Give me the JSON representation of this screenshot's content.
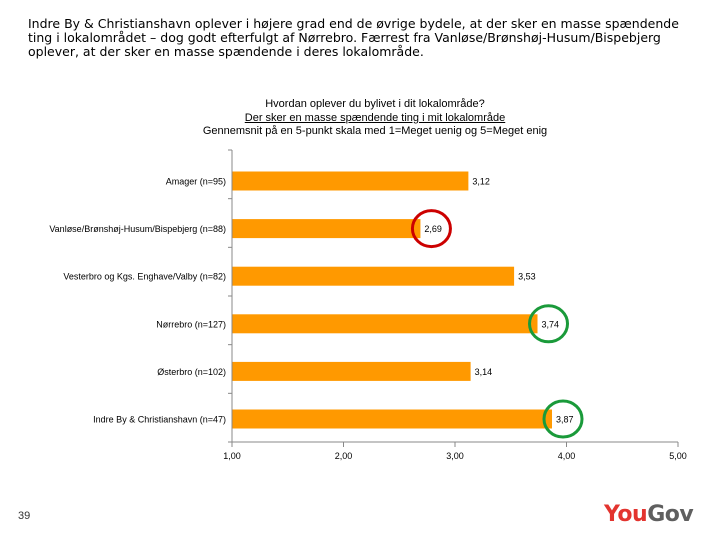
{
  "intro_text": "Indre By & Christianshavn oplever i højere grad end de øvrige bydele, at der sker en masse spændende ting i lokalområdet – dog godt efterfulgt af Nørrebro. Færrest fra Vanløse/Brønshøj-Husum/Bispebjerg oplever, at der sker en masse spændende i deres lokalområde.",
  "chart_title": {
    "line1": "Hvordan oplever du bylivet i dit lokalområde?",
    "line2": "Der sker en masse spændende ting i mit lokalområde",
    "line3": "Gennemsnit på en 5-punkt skala med 1=Meget uenig og 5=Meget enig"
  },
  "chart_data": {
    "type": "bar",
    "orientation": "horizontal",
    "categories": [
      "Amager (n=95)",
      "Vanløse/Brønshøj-Husum/Bispebjerg (n=88)",
      "Vesterbro og Kgs. Enghave/Valby (n=82)",
      "Nørrebro (n=127)",
      "Østerbro (n=102)",
      "Indre By & Christianshavn (n=47)"
    ],
    "values": [
      3.12,
      2.69,
      3.53,
      3.74,
      3.14,
      3.87
    ],
    "value_labels": [
      "3,12",
      "2,69",
      "3,53",
      "3,74",
      "3,14",
      "3,87"
    ],
    "xlim": [
      1,
      5
    ],
    "xticks": [
      "1,00",
      "2,00",
      "3,00",
      "4,00",
      "5,00"
    ],
    "bar_color": "#ff9900",
    "highlights": [
      {
        "category_index": 1,
        "color": "#cc0000"
      },
      {
        "category_index": 3,
        "color": "#1a9a3a"
      },
      {
        "category_index": 5,
        "color": "#1a9a3a"
      }
    ],
    "grid": false,
    "legend": "none"
  },
  "page_number": "39",
  "logo": {
    "part1": "You",
    "part2": "Gov",
    "color1": "#e3342f",
    "color2": "#5f5f5f"
  }
}
